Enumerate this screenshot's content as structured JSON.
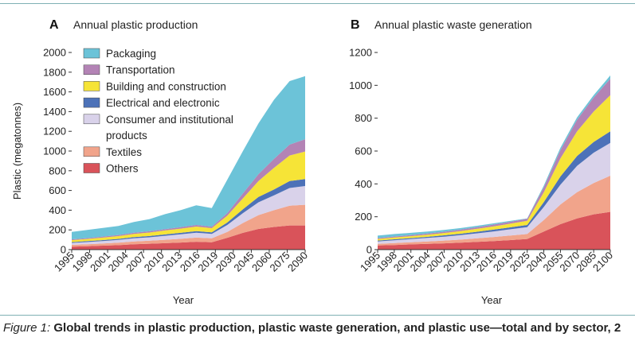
{
  "caption": {
    "label": "Figure 1:",
    "text": " Global trends in plastic production, plastic waste generation, and plastic use—total and by sector, 2"
  },
  "colors": {
    "Packaging": "#6cc3d8",
    "Transportation": "#b383b5",
    "Building and construction": "#f6e437",
    "Electrical and electronic": "#4d72b8",
    "Consumer and institutional products": "#d9d2ea",
    "Textiles": "#f1a48b",
    "Others": "#d9535a"
  },
  "chart_data": [
    {
      "panel": "A",
      "title": "Annual plastic production",
      "type": "area",
      "stacked": true,
      "xlabel": "Year",
      "ylabel": "Plastic (megatonnes)",
      "ylim": [
        0,
        2000
      ],
      "yticks": [
        0,
        200,
        400,
        600,
        800,
        1000,
        1200,
        1400,
        1600,
        1800,
        2000
      ],
      "xticks": [
        "1995",
        "1998",
        "2001",
        "2004",
        "2007",
        "2010",
        "2013",
        "2016",
        "2019",
        "2030",
        "2045",
        "2060",
        "2075",
        "2090"
      ],
      "legend": {
        "position": "top-left",
        "entries": [
          "Packaging",
          "Transportation",
          "Building and construction",
          "Electrical and electronic",
          "Consumer and institutional products",
          "Textiles",
          "Others"
        ]
      },
      "x": [
        "1995",
        "1998",
        "2001",
        "2004",
        "2007",
        "2010",
        "2013",
        "2016",
        "2019",
        "2020",
        "2030",
        "2045",
        "2060",
        "2075",
        "2090",
        "2100"
      ],
      "series": [
        {
          "name": "Others",
          "values": [
            30,
            35,
            40,
            45,
            55,
            60,
            65,
            72,
            80,
            75,
            120,
            170,
            210,
            230,
            245,
            245
          ]
        },
        {
          "name": "Textiles",
          "values": [
            18,
            20,
            22,
            25,
            28,
            30,
            35,
            38,
            42,
            40,
            60,
            100,
            140,
            170,
            200,
            210
          ]
        },
        {
          "name": "Consumer and institutional products",
          "values": [
            20,
            22,
            25,
            28,
            32,
            35,
            40,
            45,
            50,
            45,
            70,
            100,
            130,
            150,
            180,
            190
          ]
        },
        {
          "name": "Electrical and electronic",
          "values": [
            8,
            9,
            10,
            11,
            12,
            13,
            14,
            15,
            16,
            15,
            25,
            40,
            55,
            60,
            70,
            70
          ]
        },
        {
          "name": "Building and construction",
          "values": [
            20,
            22,
            25,
            28,
            32,
            35,
            40,
            43,
            46,
            43,
            70,
            110,
            160,
            220,
            260,
            280
          ]
        },
        {
          "name": "Transportation",
          "values": [
            8,
            9,
            10,
            11,
            12,
            13,
            14,
            15,
            16,
            15,
            25,
            50,
            70,
            90,
            110,
            125
          ]
        },
        {
          "name": "Packaging",
          "values": [
            76,
            83,
            88,
            92,
            109,
            124,
            152,
            172,
            200,
            188,
            340,
            430,
            515,
            600,
            645,
            640
          ]
        }
      ]
    },
    {
      "panel": "B",
      "title": "Annual plastic waste generation",
      "type": "area",
      "stacked": true,
      "xlabel": "Year",
      "ylabel": "",
      "ylim": [
        0,
        1200
      ],
      "yticks": [
        0,
        200,
        400,
        600,
        800,
        1000,
        1200
      ],
      "xticks": [
        "1995",
        "1998",
        "2001",
        "2004",
        "2007",
        "2010",
        "2013",
        "2016",
        "2019",
        "2025",
        "2040",
        "2055",
        "2070",
        "2085",
        "2100"
      ],
      "x": [
        "1995",
        "1998",
        "2001",
        "2004",
        "2007",
        "2010",
        "2013",
        "2016",
        "2019",
        "2025",
        "2040",
        "2055",
        "2070",
        "2085",
        "2100"
      ],
      "series": [
        {
          "name": "Others",
          "values": [
            25,
            28,
            32,
            35,
            38,
            42,
            47,
            52,
            58,
            65,
            110,
            155,
            190,
            215,
            230
          ]
        },
        {
          "name": "Textiles",
          "values": [
            10,
            12,
            13,
            15,
            17,
            19,
            22,
            25,
            28,
            30,
            70,
            120,
            160,
            190,
            220
          ]
        },
        {
          "name": "Consumer and institutional products",
          "values": [
            15,
            17,
            19,
            21,
            24,
            27,
            30,
            34,
            38,
            42,
            80,
            120,
            160,
            185,
            200
          ]
        },
        {
          "name": "Electrical and electronic",
          "values": [
            5,
            6,
            6,
            7,
            8,
            9,
            10,
            11,
            12,
            13,
            30,
            50,
            60,
            65,
            70
          ]
        },
        {
          "name": "Building and construction",
          "values": [
            10,
            11,
            12,
            13,
            14,
            16,
            18,
            20,
            22,
            25,
            60,
            110,
            150,
            185,
            220
          ]
        },
        {
          "name": "Transportation",
          "values": [
            5,
            6,
            6,
            7,
            8,
            9,
            10,
            11,
            12,
            13,
            30,
            50,
            70,
            85,
            100
          ]
        },
        {
          "name": "Packaging",
          "values": [
            15,
            15,
            14,
            12,
            11,
            9,
            8,
            7,
            5,
            2,
            10,
            15,
            15,
            15,
            20
          ]
        }
      ]
    }
  ]
}
